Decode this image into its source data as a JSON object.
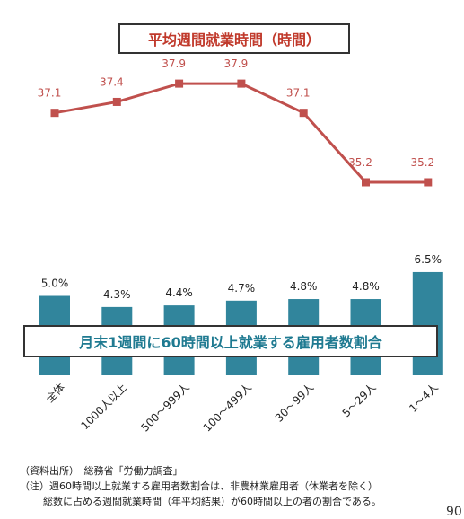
{
  "chart_data": [
    {
      "type": "line",
      "title": "平均週間就業時間（時間）",
      "categories": [
        "全体",
        "1000人以上",
        "500～999人",
        "100～499人",
        "30～99人",
        "5～29人",
        "1～4人"
      ],
      "values": [
        37.1,
        37.4,
        37.9,
        37.9,
        37.1,
        35.2,
        35.2
      ],
      "data_labels": [
        "37.1",
        "37.4",
        "37.9",
        "37.9",
        "37.1",
        "35.2",
        "35.2"
      ],
      "color": "#c0504d"
    },
    {
      "type": "bar",
      "title": "月末1週間に60時間以上就業する雇用者数割合",
      "categories": [
        "全体",
        "1000人以上",
        "500～999人",
        "100～499人",
        "30～99人",
        "5～29人",
        "1～4人"
      ],
      "values": [
        5.0,
        4.3,
        4.4,
        4.7,
        4.8,
        4.8,
        6.5
      ],
      "data_labels": [
        "5.0%",
        "4.3%",
        "4.4%",
        "4.7%",
        "4.8%",
        "4.8%",
        "6.5%"
      ],
      "color": "#31859c"
    }
  ],
  "notes": {
    "source": "（資料出所）　総務省「労働力調査」",
    "note1": "（注）週60時間以上就業する雇用者数割合は、非農林業雇用者（休業者を除く）",
    "note2": "総数に占める週間就業時間（年平均結果）が60時間以上の者の割合である。"
  },
  "page_number": "90"
}
